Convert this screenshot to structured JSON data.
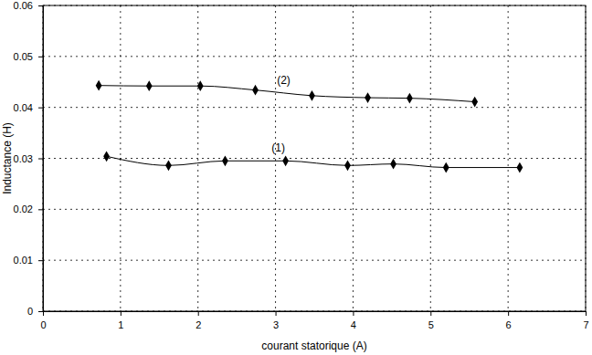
{
  "chart_data": {
    "type": "line",
    "x_label": "courant statorique (A)",
    "y_label": "Inductance  (H)",
    "xlim": [
      0,
      7
    ],
    "xticks": [
      0,
      1,
      2,
      3,
      4,
      5,
      6,
      7
    ],
    "ylim": [
      0,
      0.06
    ],
    "yticks": [
      0,
      0.01,
      0.02,
      0.03,
      0.04,
      0.05,
      0.06
    ],
    "grid": true,
    "series": [
      {
        "name": "(1)",
        "color": "#000000",
        "marker": "diamond",
        "line_style": "solid",
        "x": [
          0.82,
          1.62,
          2.35,
          3.13,
          3.93,
          4.52,
          5.2,
          6.15
        ],
        "values": [
          0.0304,
          0.0286,
          0.0295,
          0.0295,
          0.0286,
          0.0289,
          0.0282,
          0.0282
        ]
      },
      {
        "name": "(2)",
        "color": "#000000",
        "marker": "diamond",
        "line_style": "solid",
        "x": [
          0.72,
          1.37,
          2.03,
          2.74,
          3.47,
          4.19,
          4.73,
          5.57
        ],
        "values": [
          0.0443,
          0.0442,
          0.0442,
          0.0434,
          0.0423,
          0.0419,
          0.0418,
          0.0411
        ]
      }
    ]
  }
}
